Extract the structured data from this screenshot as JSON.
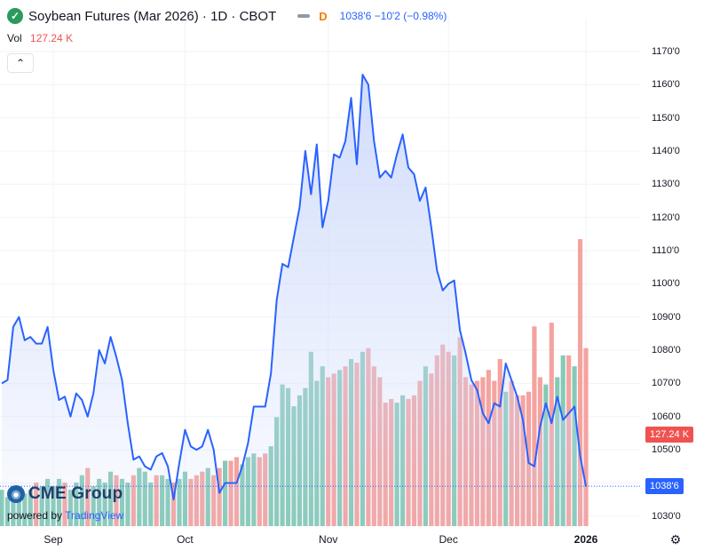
{
  "header": {
    "logo_icon": "soybean-logo-icon",
    "title": "Soybean Futures (Mar 2026) · 1D · CBOT",
    "interval_symbol": "D",
    "quote": "1038'6  −10'2 (−0.98%)"
  },
  "volume_legend": {
    "label": "Vol",
    "value": "127.24 K"
  },
  "collapse_button": {
    "icon": "chevron-up-icon",
    "symbol": "⌃"
  },
  "price_badge": {
    "text": "1038'6",
    "color": "#2962ff"
  },
  "volume_badge": {
    "text": "127.24 K",
    "color": "#ef5350"
  },
  "branding": {
    "cme_text": "CME Group",
    "powered_prefix": "powered by",
    "powered_brand": "TradingView"
  },
  "settings_icon": "gear-icon",
  "colors": {
    "line": "#2962ff",
    "area_top": "#cfdbfb",
    "vol_up": "#85c9b6",
    "vol_down": "#f4a3a0",
    "grid": "#f0f3fa"
  },
  "chart_data": {
    "type": "area",
    "title": "Soybean Futures (Mar 2026) · 1D · CBOT",
    "ylabel": "",
    "xlabel": "",
    "ylim": [
      1027,
      1178
    ],
    "y_ticks": [
      "1170'0",
      "1160'0",
      "1150'0",
      "1140'0",
      "1130'0",
      "1120'0",
      "1110'0",
      "1100'0",
      "1090'0",
      "1080'0",
      "1070'0",
      "1060'0",
      "1050'0",
      "1040'0",
      "1030'0"
    ],
    "y_tick_values": [
      1170,
      1160,
      1150,
      1140,
      1130,
      1120,
      1110,
      1100,
      1090,
      1080,
      1070,
      1060,
      1050,
      1040,
      1030
    ],
    "x_ticks": [
      {
        "label": "Sep",
        "index": 9
      },
      {
        "label": "Oct",
        "index": 32
      },
      {
        "label": "Nov",
        "index": 57
      },
      {
        "label": "Dec",
        "index": 78
      },
      {
        "label": "2026",
        "index": 102
      }
    ],
    "grid": true,
    "series": [
      {
        "name": "",
        "values": [
          1070,
          1071,
          1087,
          1090,
          1083,
          1084,
          1082,
          1082,
          1087,
          1074,
          1065,
          1066,
          1060,
          1067,
          1065,
          1060,
          1067,
          1080,
          1076,
          1084,
          1078,
          1071,
          1058,
          1047,
          1048,
          1045,
          1044,
          1048,
          1049,
          1045,
          1035,
          1046,
          1056,
          1051,
          1050,
          1051,
          1056,
          1050,
          1037,
          1040,
          1040,
          1040,
          1045,
          1052,
          1063,
          1063,
          1063,
          1073,
          1095,
          1106,
          1105,
          1114,
          1123,
          1140,
          1127,
          1142,
          1117,
          1125,
          1139,
          1138,
          1143,
          1156,
          1136,
          1163,
          1160,
          1143,
          1132,
          1134,
          1132,
          1139,
          1145,
          1135,
          1133,
          1125,
          1129,
          1117,
          1104,
          1098,
          1100,
          1101,
          1086,
          1079,
          1071,
          1068,
          1061,
          1058,
          1064,
          1063,
          1076,
          1071,
          1066,
          1059,
          1046,
          1045,
          1057,
          1064,
          1058,
          1066,
          1059,
          1061,
          1063,
          1048,
          1039
        ]
      }
    ],
    "volume": {
      "name": "Vol",
      "values": [
        10,
        8,
        9,
        11,
        9,
        10,
        12,
        11,
        13,
        11,
        13,
        12,
        10,
        12,
        14,
        16,
        11,
        13,
        12,
        15,
        14,
        13,
        12,
        14,
        16,
        15,
        12,
        14,
        14,
        13,
        12,
        13,
        15,
        13,
        14,
        15,
        16,
        14,
        16,
        18,
        18,
        19,
        17,
        19,
        20,
        19,
        20,
        22,
        30,
        39,
        38,
        33,
        36,
        38,
        48,
        40,
        44,
        41,
        42,
        43,
        44,
        46,
        45,
        48,
        49,
        44,
        41,
        34,
        35,
        34,
        36,
        35,
        36,
        40,
        44,
        42,
        47,
        50,
        48,
        47,
        52,
        41,
        39,
        40,
        41,
        43,
        40,
        46,
        37,
        40,
        36,
        36,
        37,
        55,
        41,
        39,
        56,
        41,
        47,
        47,
        44,
        79,
        49
      ],
      "up": [
        true,
        true,
        true,
        true,
        true,
        true,
        false,
        true,
        true,
        true,
        true,
        false,
        true,
        true,
        true,
        false,
        true,
        true,
        true,
        true,
        false,
        true,
        true,
        false,
        true,
        true,
        true,
        false,
        true,
        true,
        false,
        true,
        true,
        false,
        false,
        false,
        true,
        false,
        false,
        true,
        false,
        false,
        true,
        true,
        true,
        false,
        false,
        true,
        true,
        true,
        true,
        true,
        true,
        true,
        true,
        true,
        true,
        false,
        false,
        true,
        false,
        true,
        false,
        true,
        false,
        false,
        false,
        false,
        false,
        true,
        true,
        false,
        false,
        false,
        true,
        false,
        false,
        false,
        false,
        true,
        false,
        false,
        false,
        false,
        false,
        false,
        false,
        false,
        true,
        false,
        false,
        false,
        false,
        false,
        false,
        true,
        false,
        true,
        true,
        false,
        true,
        false,
        false
      ],
      "ylim": [
        0,
        138
      ]
    },
    "last_price": "1038'6",
    "last_volume": "127.24 K"
  }
}
